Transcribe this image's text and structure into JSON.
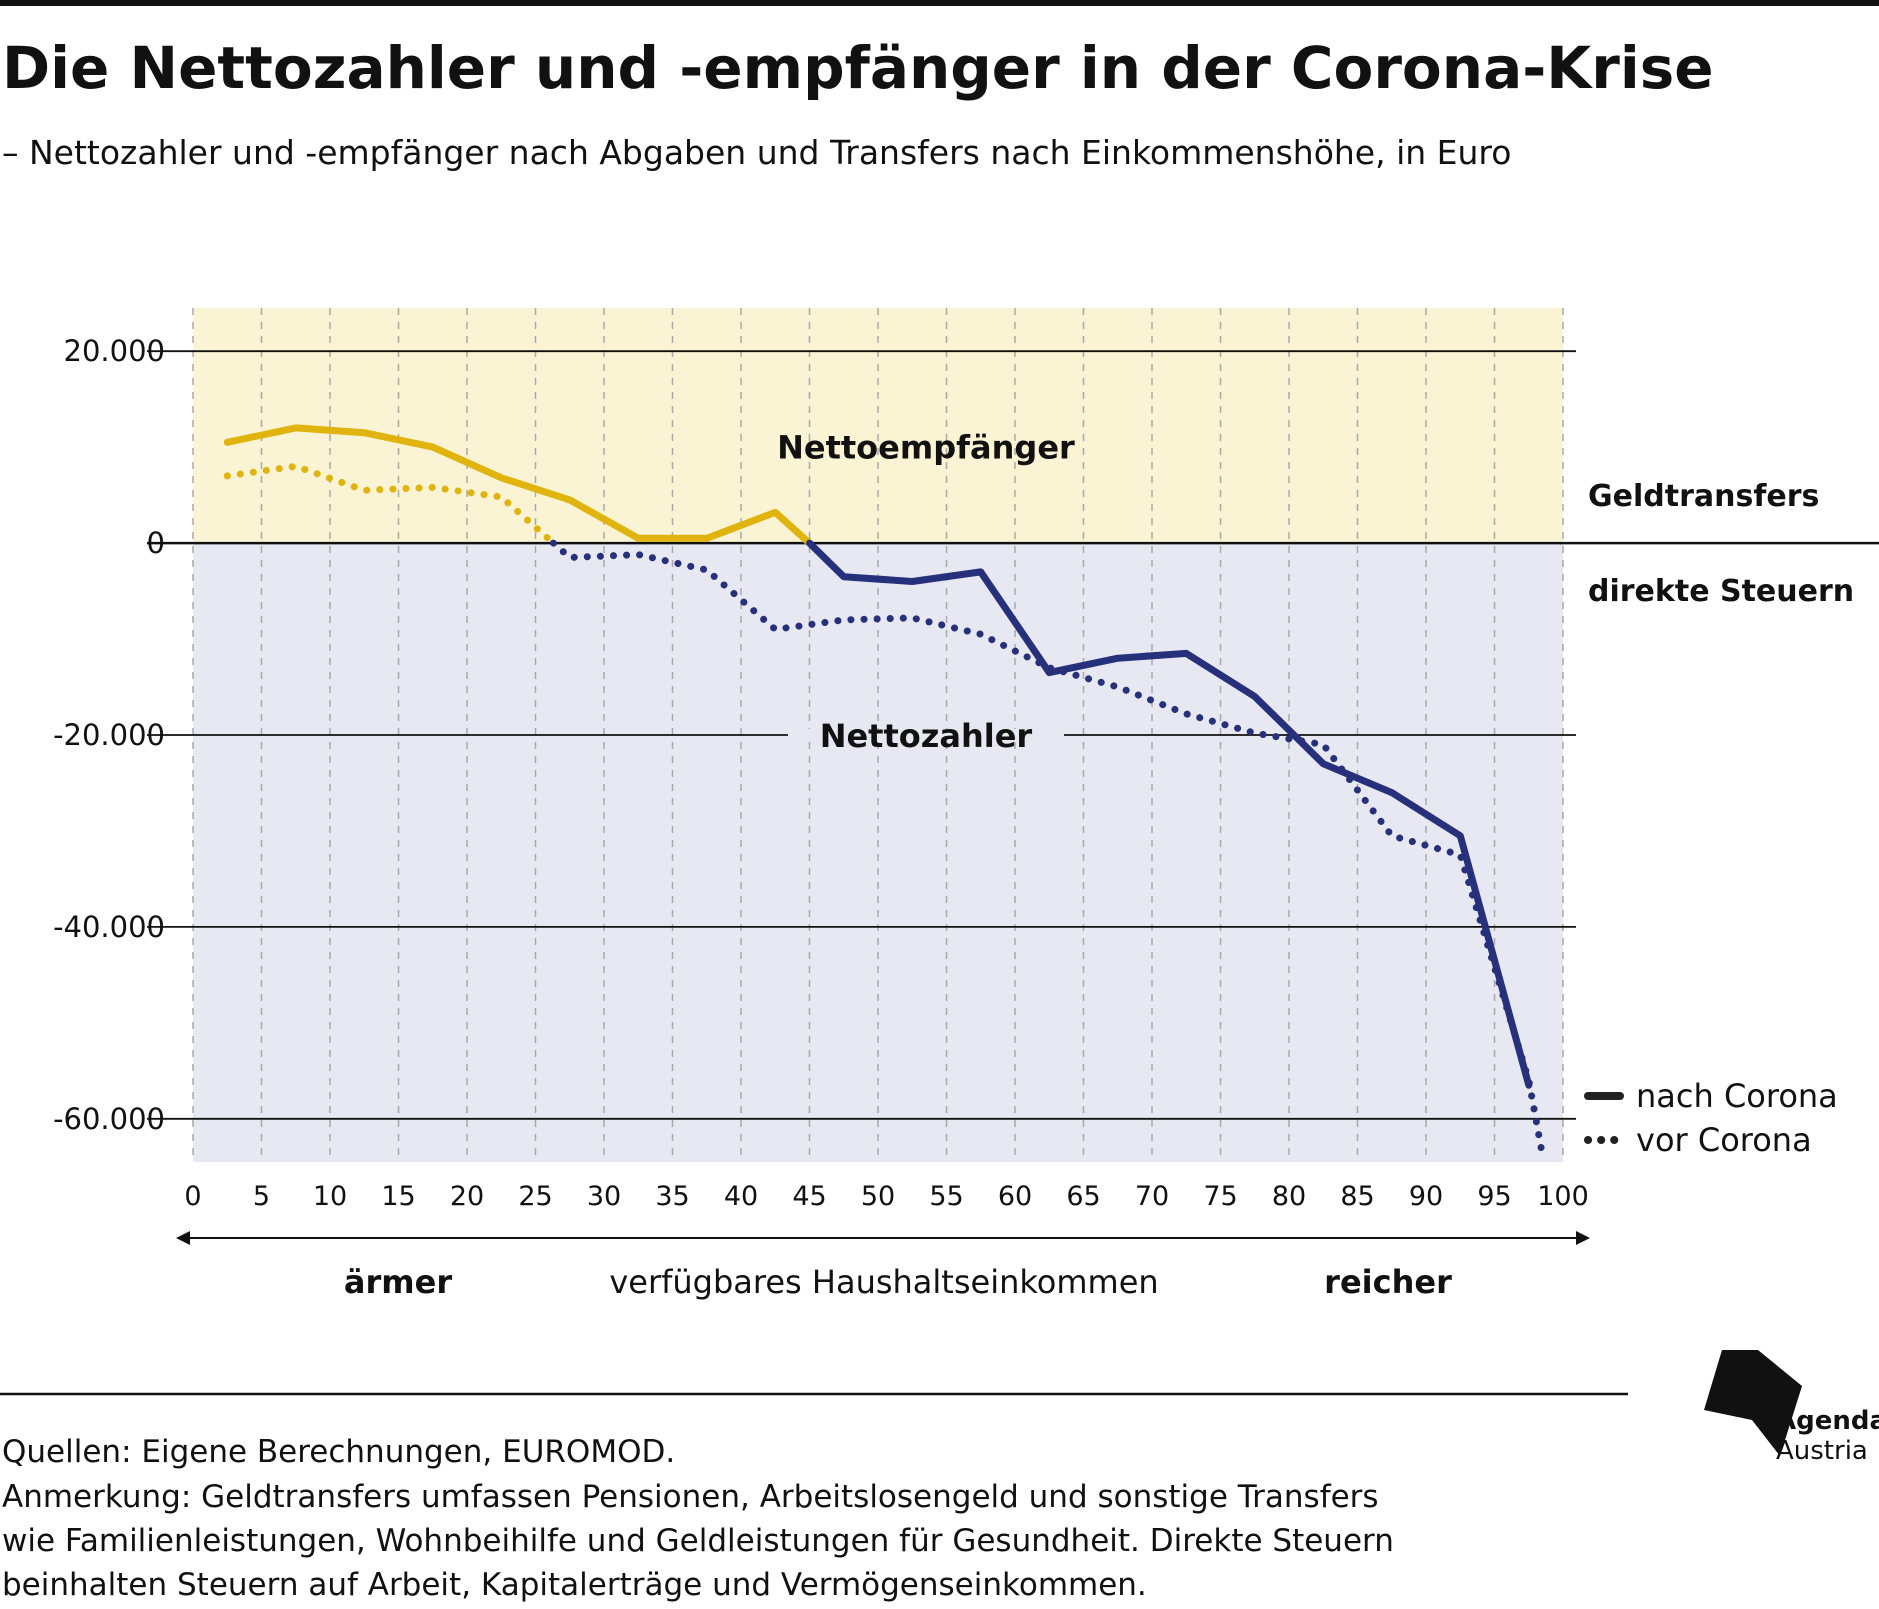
{
  "header": {
    "title": "Die Nettozahler und -empfänger in der Corona-Krise",
    "subtitle": "– Nettozahler und -empfänger nach Abgaben und Transfers nach Einkommenshöhe, in Euro"
  },
  "chart_data": {
    "type": "line",
    "xlim": [
      0,
      100
    ],
    "ylim": [
      -64500,
      24500
    ],
    "x_ticks": [
      "0",
      "5",
      "10",
      "15",
      "20",
      "25",
      "30",
      "35",
      "40",
      "45",
      "50",
      "55",
      "60",
      "65",
      "70",
      "75",
      "80",
      "85",
      "90",
      "95",
      "100"
    ],
    "y_ticks": [
      {
        "value": 20000,
        "label": "20.000"
      },
      {
        "value": 0,
        "label": "0"
      },
      {
        "value": -20000,
        "label": "-20.000"
      },
      {
        "value": -40000,
        "label": "-40.000"
      },
      {
        "value": -60000,
        "label": "-60.000"
      }
    ],
    "series": [
      {
        "name": "nach Corona",
        "style": "solid",
        "x": [
          2.5,
          7.5,
          12.5,
          17.5,
          22.5,
          27.5,
          32.5,
          37.5,
          42.5,
          45,
          47.5,
          52.5,
          57.5,
          62.5,
          67.5,
          72.5,
          77.5,
          82.5,
          87.5,
          92.5,
          97.5
        ],
        "y": [
          10500,
          12000,
          11500,
          10000,
          6800,
          4500,
          500,
          500,
          3200,
          0,
          -3500,
          -4000,
          -3000,
          -13500,
          -12000,
          -11500,
          -16000,
          -23000,
          -26000,
          -30500,
          -56500
        ]
      },
      {
        "name": "vor Corona",
        "style": "dotted",
        "x": [
          2.5,
          7.5,
          12.5,
          17.5,
          22.5,
          27.5,
          32.5,
          37.5,
          42.5,
          47.5,
          52.5,
          57.5,
          62.5,
          67.5,
          72.5,
          77.5,
          82.5,
          87.5,
          92.5,
          97.5,
          98.5
        ],
        "y": [
          7000,
          8000,
          5500,
          5800,
          4800,
          -1500,
          -1200,
          -2800,
          -9000,
          -8000,
          -7800,
          -9500,
          -13000,
          -15000,
          -17800,
          -19800,
          -21000,
          -30500,
          -32500,
          -56000,
          -63800
        ]
      }
    ],
    "positive_color": "#e0b40c",
    "negative_color": "#27317b",
    "positive_band_color": "#faf3d4",
    "negative_band_color": "#e7e8f2",
    "region_labels": {
      "positive": "Nettoempfänger",
      "negative": "Nettozahler"
    },
    "side_labels": {
      "above_zero": "Geldtransfers",
      "below_zero": "direkte Steuern"
    },
    "xaxis": {
      "left": "ärmer",
      "center": "verfügbares Haushaltseinkommen",
      "right": "reicher"
    },
    "grid": "vertical dashed every 5, horizontal solid every 20.000",
    "legend_position": "bottom-right"
  },
  "footer": {
    "sources": "Quellen: Eigene Berechnungen, EUROMOD.",
    "note_lines": [
      "Anmerkung: Geldtransfers umfassen Pensionen, Arbeitslosengeld und sonstige Transfers",
      "wie Familienleistungen, Wohnbeihilfe und Geldleistungen für Gesundheit. Direkte Steuern",
      "beinhalten Steuern auf Arbeit, Kapitalerträge und Vermögenseinkommen."
    ],
    "logo": {
      "line1": "Agenda",
      "line2": "Austria"
    }
  }
}
